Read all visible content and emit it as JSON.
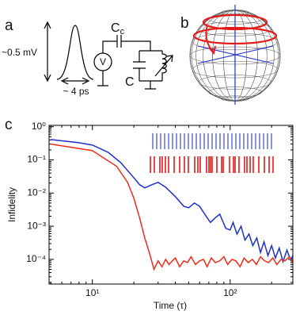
{
  "panel_a": {
    "label": "a",
    "amplitude": "~0.5 mV",
    "width": "~ 4 ps",
    "source": "V",
    "coupling": {
      "main": "C",
      "sub": "c"
    },
    "capacitor": "C"
  },
  "panel_b": {
    "label": "b"
  },
  "chart_data": {
    "type": "line",
    "panel_label": "c",
    "x_label": "Time (τ)",
    "y_label": "Infidelity",
    "log_x": true,
    "log_y": true,
    "xlim": [
      4.85,
      285
    ],
    "ylim": [
      1.8e-05,
      1.1
    ],
    "xticks": [
      {
        "value": 10,
        "label": "10¹"
      },
      {
        "value": 100,
        "label": "10²"
      }
    ],
    "yticks": [
      {
        "value": 1,
        "label": "10⁰"
      },
      {
        "value": 0.1,
        "label": "10⁻¹"
      },
      {
        "value": 0.01,
        "label": "10⁻²"
      },
      {
        "value": 0.001,
        "label": "10⁻³"
      },
      {
        "value": 0.0001,
        "label": "10⁻⁴"
      }
    ],
    "series": [
      {
        "color": "#1f2fcc",
        "x": [
          5,
          8,
          10,
          13,
          16,
          19,
          22,
          24,
          27,
          30,
          34,
          40,
          46,
          50,
          55,
          60,
          68,
          72,
          78,
          84,
          93,
          100,
          105,
          112,
          120,
          128,
          137,
          146,
          156,
          166,
          176,
          188,
          200,
          213,
          227,
          242,
          258,
          275,
          285
        ],
        "values": [
          0.41,
          0.33,
          0.28,
          0.17,
          0.084,
          0.037,
          0.018,
          0.0143,
          0.0178,
          0.021,
          0.0151,
          0.0078,
          0.004,
          0.0036,
          0.005,
          0.004,
          0.0018,
          0.0013,
          0.0018,
          0.0023,
          0.00086,
          0.00077,
          0.0013,
          0.00058,
          0.001,
          0.00038,
          0.00058,
          0.00026,
          0.00044,
          0.00016,
          0.00034,
          0.00013,
          0.00026,
          0.00011,
          0.00022,
          8.5e-05,
          0.00019,
          9.5e-05,
          0.00013
        ]
      },
      {
        "color": "#ee2b1a",
        "x": [
          5,
          10,
          15,
          18,
          20,
          22,
          24,
          26,
          28,
          30,
          32,
          34,
          36,
          38,
          40,
          43,
          46,
          49,
          52,
          56,
          60,
          64,
          68,
          73,
          78,
          84,
          90,
          96,
          103,
          110,
          118,
          126,
          135,
          145,
          155,
          166,
          178,
          190,
          204,
          218,
          234,
          250,
          268,
          285
        ],
        "values": [
          0.3,
          0.19,
          0.064,
          0.021,
          0.007,
          0.0018,
          0.00044,
          0.00015,
          5e-05,
          9e-05,
          6e-05,
          0.0001,
          7e-05,
          9e-05,
          0.00011,
          6e-05,
          9e-05,
          8e-05,
          0.00012,
          7e-05,
          9e-05,
          0.0001,
          6e-05,
          0.00011,
          8e-05,
          9e-05,
          0.00012,
          7e-05,
          0.0001,
          9e-05,
          6e-05,
          0.00011,
          8e-05,
          0.0001,
          7e-05,
          0.00012,
          9e-05,
          8e-05,
          0.00011,
          7e-05,
          0.0001,
          9e-05,
          0.00012,
          8e-05
        ]
      }
    ]
  }
}
